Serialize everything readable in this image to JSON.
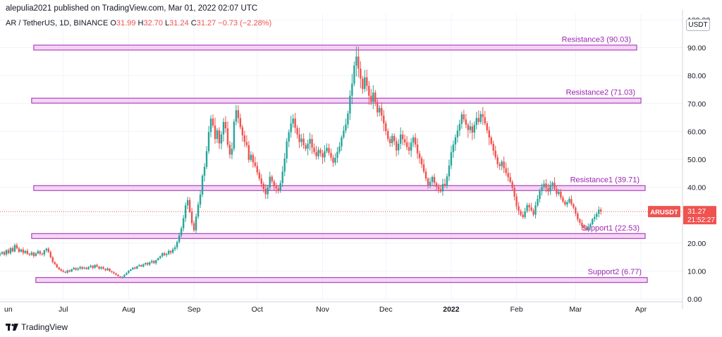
{
  "header": {
    "published": "alepulia2021 published on TradingView.com, Mar 01, 2022 02:07 UTC",
    "symbol": "AR / TetherUS, 1D, BINANCE",
    "ohlc": [
      {
        "label": "O",
        "value": "31.99"
      },
      {
        "label": "H",
        "value": "32.70"
      },
      {
        "label": "L",
        "value": "31.24"
      },
      {
        "label": "C",
        "value": "31.27"
      }
    ],
    "change": "−0.73 (−2.28%)"
  },
  "brand": {
    "name": "TradingView",
    "logo_icon": "tradingview-logo-icon"
  },
  "colors": {
    "up": "#26a69a",
    "down": "#ef5350",
    "zone_fill": "#f3c6f3",
    "zone_stroke": "#9c27b0",
    "zone_text": "#9c27b0",
    "price_line": "#ef5350",
    "badge": "#ef5350"
  },
  "chart_data": {
    "type": "candlestick",
    "title": "",
    "unit": "USDT",
    "x_labels": [
      "Jul",
      "Aug",
      "Sep",
      "Oct",
      "Nov",
      "Dec",
      "2022",
      "Feb",
      "Mar",
      "Apr"
    ],
    "x_label_cut": "un",
    "y_ticks": [
      "0.00",
      "10.00",
      "20.00",
      "30.00",
      "40.00",
      "50.00",
      "60.00",
      "70.00",
      "80.00",
      "90.00",
      "100.00"
    ],
    "ylim": [
      0,
      100
    ],
    "x_range": [
      "2021-06-01",
      "2022-04-08"
    ],
    "zones": [
      {
        "name": "Resistance3 (90.03)",
        "value": 90.03,
        "start": "2021-06-17",
        "end": "2022-03-30"
      },
      {
        "name": "Resistance2 (71.03)",
        "value": 71.03,
        "start": "2021-06-16",
        "end": "2022-04-01"
      },
      {
        "name": "Resistance1 (39.71)",
        "value": 39.71,
        "start": "2021-06-17",
        "end": "2022-04-03"
      },
      {
        "name": "Support1 (22.53)",
        "value": 22.53,
        "start": "2021-06-16",
        "end": "2022-04-03"
      },
      {
        "name": "Support2 (6.77)",
        "value": 6.77,
        "start": "2021-06-18",
        "end": "2022-04-04"
      }
    ],
    "last_price": {
      "symbol": "ARUSDT",
      "value": 31.27,
      "price_text": "31.27",
      "countdown": "21:52:27"
    },
    "candles_anchor_start": "2021-06-01",
    "closes": [
      16.2,
      16.8,
      15.9,
      17.5,
      16.4,
      18.2,
      17.0,
      19.3,
      18.1,
      16.9,
      17.7,
      16.5,
      17.2,
      16.1,
      15.8,
      16.6,
      15.4,
      16.3,
      17.1,
      16.2,
      15.9,
      17.4,
      18.0,
      16.8,
      14.9,
      13.2,
      12.4,
      11.3,
      10.6,
      10.1,
      9.7,
      9.4,
      10.2,
      9.8,
      10.6,
      11.1,
      10.5,
      10.9,
      11.4,
      10.8,
      11.2,
      10.7,
      11.5,
      11.9,
      11.1,
      12.2,
      11.6,
      10.9,
      11.4,
      10.8,
      10.3,
      10.9,
      9.9,
      9.6,
      9.2,
      8.7,
      8.1,
      7.6,
      7.9,
      8.6,
      9.3,
      10.1,
      10.6,
      11.2,
      10.8,
      11.7,
      12.1,
      11.6,
      12.4,
      12.9,
      12.3,
      13.1,
      13.6,
      12.8,
      13.9,
      14.6,
      15.3,
      16.4,
      15.7,
      16.1,
      17.2,
      16.6,
      17.8,
      18.5,
      20.4,
      22.8,
      25.3,
      28.9,
      33.5,
      35.4,
      31.2,
      27.1,
      24.6,
      29.5,
      33.8,
      37.4,
      44.1,
      47.3,
      52.9,
      59.8,
      64.6,
      62.1,
      57.3,
      60.4,
      55.7,
      58.9,
      63.4,
      61.1,
      55.2,
      51.7,
      53.8,
      63.5,
      67.6,
      64.8,
      61.5,
      58.6,
      56.2,
      55.1,
      49.8,
      51.6,
      48.9,
      47.6,
      45.3,
      43.1,
      41.2,
      39.4,
      37.5,
      39.9,
      43.8,
      42.1,
      40.3,
      39.6,
      38.7,
      41.5,
      45.6,
      50.3,
      56.4,
      59.7,
      62.8,
      64.6,
      61.3,
      58.9,
      56.2,
      57.4,
      55.1,
      53.8,
      55.6,
      57.3,
      54.2,
      52.6,
      51.1,
      53.4,
      52.2,
      50.7,
      52.9,
      54.1,
      52.3,
      50.6,
      48.8,
      50.5,
      52.7,
      54.6,
      57.9,
      60.3,
      62.5,
      66.4,
      72.8,
      77.1,
      83.6,
      86.8,
      82.5,
      78.9,
      75.2,
      79.4,
      76.3,
      72.8,
      70.6,
      73.9,
      70.5,
      66.8,
      68.4,
      65.7,
      62.9,
      60.1,
      57.3,
      55.8,
      58.4,
      56.5,
      53.2,
      55.6,
      58.9,
      57.2,
      56.1,
      54.4,
      53.1,
      56.0,
      57.8,
      55.3,
      52.1,
      50.4,
      48.2,
      45.6,
      43.1,
      40.6,
      41.9,
      43.7,
      41.5,
      40.2,
      39.3,
      38.5,
      41.2,
      40.6,
      43.9,
      47.8,
      52.6,
      55.3,
      57.9,
      60.3,
      62.7,
      66.1,
      64.3,
      62.4,
      60.5,
      61.8,
      59.6,
      62.3,
      64.8,
      63.4,
      66.2,
      65.1,
      62.9,
      60.4,
      57.8,
      55.6,
      53.1,
      50.7,
      48.3,
      47.6,
      49.2,
      46.8,
      45.1,
      43.6,
      41.9,
      39.8,
      36.7,
      33.2,
      31.5,
      30.1,
      29.3,
      31.4,
      33.6,
      32.8,
      31.7,
      30.2,
      33.5,
      35.8,
      38.6,
      40.1,
      41.3,
      39.7,
      38.5,
      40.8,
      41.6,
      39.4,
      37.6,
      38.4,
      36.3,
      34.9,
      33.8,
      34.6,
      35.8,
      33.9,
      32.7,
      30.6,
      28.5,
      27.3,
      26.1,
      25.4,
      24.7,
      25.9,
      26.8,
      28.6,
      29.4,
      30.5,
      31.99,
      31.27
    ]
  }
}
